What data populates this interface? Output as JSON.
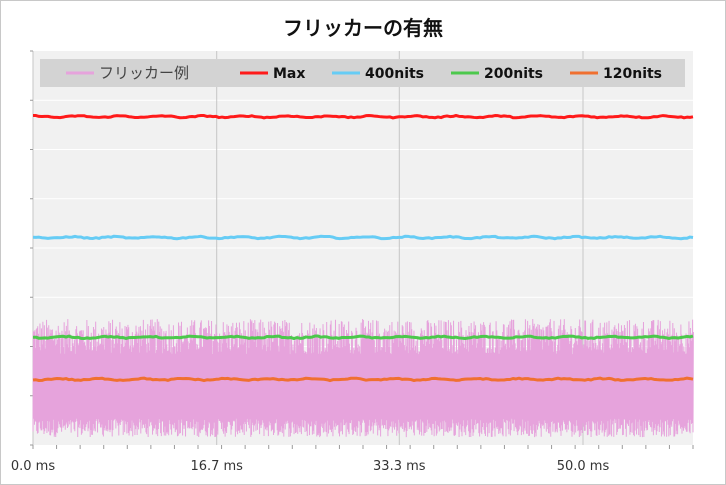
{
  "chart_data": {
    "type": "line",
    "title": "フリッカーの有無",
    "xlabel": "",
    "ylabel": "",
    "x_unit": "ms",
    "xlim": [
      0,
      60
    ],
    "ylim": [
      0,
      7.5
    ],
    "x_ticks": [
      0.0,
      16.7,
      33.3,
      50.0
    ],
    "x_tick_labels": [
      "0.0 ms",
      "16.7 ms",
      "33.3 ms",
      "50.0 ms"
    ],
    "grid": true,
    "legend_position": "top",
    "series": [
      {
        "name": "フリッカー例",
        "color": "#e6a3dc",
        "kind": "flicker",
        "min": 0.15,
        "max": 2.4
      },
      {
        "name": "Max",
        "color": "#ff1a1a",
        "kind": "flat",
        "value": 6.25
      },
      {
        "name": "400nits",
        "color": "#66ccf5",
        "kind": "flat",
        "value": 3.95
      },
      {
        "name": "200nits",
        "color": "#4cc84c",
        "kind": "flat",
        "value": 2.05
      },
      {
        "name": "120nits",
        "color": "#f07030",
        "kind": "flat",
        "value": 1.25
      }
    ]
  }
}
